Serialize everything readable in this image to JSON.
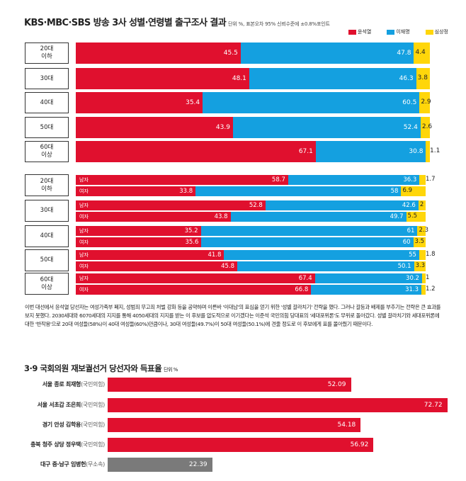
{
  "header": {
    "title": "KBS·MBC·SBS 방송 3사 성별·연령별 출구조사 결과",
    "subtitle": "단위 %, 표본오차 95% 신뢰수준에 ±0.8%포인트"
  },
  "legend": [
    {
      "label": "윤석열",
      "color": "#e0102e"
    },
    {
      "label": "이재명",
      "color": "#14a0e0"
    },
    {
      "label": "심상정",
      "color": "#ffd60a"
    }
  ],
  "colors": {
    "red": "#e0102e",
    "blue": "#14a0e0",
    "yellow": "#ffd60a",
    "gray": "#7a7a7a"
  },
  "age_rows": [
    {
      "age": "20대\n이하",
      "values": [
        "45.5",
        "47.8",
        "4.4"
      ]
    },
    {
      "age": "30대",
      "values": [
        "48.1",
        "46.3",
        "3.8"
      ]
    },
    {
      "age": "40대",
      "values": [
        "35.4",
        "60.5",
        "2.9"
      ]
    },
    {
      "age": "50대",
      "values": [
        "43.9",
        "52.4",
        "2.6"
      ]
    },
    {
      "age": "60대\n이상",
      "values": [
        "67.1",
        "30.8",
        "1.1"
      ]
    }
  ],
  "gender_rows": [
    {
      "age": "20대\n이하",
      "male": {
        "tag": "남자",
        "values": [
          "58.7",
          "36.3",
          "1.7"
        ]
      },
      "female": {
        "tag": "여자",
        "values": [
          "33.8",
          "58",
          "6.9"
        ]
      }
    },
    {
      "age": "30대",
      "male": {
        "tag": "남자",
        "values": [
          "52.8",
          "42.6",
          "2"
        ]
      },
      "female": {
        "tag": "여자",
        "values": [
          "43.8",
          "49.7",
          "5.5"
        ]
      }
    },
    {
      "age": "40대",
      "male": {
        "tag": "남자",
        "values": [
          "35.2",
          "61",
          "2.3"
        ]
      },
      "female": {
        "tag": "여자",
        "values": [
          "35.6",
          "60",
          "3.5"
        ]
      }
    },
    {
      "age": "50대",
      "male": {
        "tag": "남자",
        "values": [
          "41.8",
          "55",
          "1.8"
        ]
      },
      "female": {
        "tag": "여자",
        "values": [
          "45.8",
          "50.1",
          "3.3"
        ]
      }
    },
    {
      "age": "60대\n이상",
      "male": {
        "tag": "남자",
        "values": [
          "67.4",
          "30.2",
          "1"
        ]
      },
      "female": {
        "tag": "여자",
        "values": [
          "66.8",
          "31.3",
          "1.2"
        ]
      }
    }
  ],
  "paragraph": "이번 대선에서 윤석열 당선자는 여성가족부 폐지, 성범죄 무고죄 처벌 강화 등을 공약하며 이른바 '이대남'의 표심을 얻기 위한 '성별 갈라치기' 전략을 폈다. 그러나 갈등과 배제를 부추기는 전략은 큰 효과를 보지 못했다. 2030세대와 6070세대의 지지를 통해 4050세대의 지지를 받는 이 후보를 압도적으로 이기겠다는 이준석 국민의힘 당대표의 '세대포위론'도 무위로 돌아갔다. 성별 갈라치기와 세대포위론에 대한 '반작용'으로 20대 여성들(58%)이 40대 여성들(60%)만큼이나, 30대 여성들(49.7%)이 50대 여성들(50.1%)에 견줄 정도로 이 후보에게 표를 몰아줬기 때문이다.",
  "section2": {
    "title": "3·9 국회의원 재보궐선거 당선자와 득표율",
    "unit": "단위 %"
  },
  "chart_data": [
    {
      "type": "bar",
      "title": "KBS·MBC·SBS 방송 3사 성별·연령별 출구조사 결과",
      "subtitle": "단위 %, 표본오차 95% 신뢰수준에 ±0.8%포인트",
      "stacked": true,
      "orientation": "horizontal",
      "categories": [
        "20대 이하",
        "30대",
        "40대",
        "50대",
        "60대 이상"
      ],
      "series": [
        {
          "name": "윤석열",
          "values": [
            45.5,
            48.1,
            35.4,
            43.9,
            67.1
          ]
        },
        {
          "name": "이재명",
          "values": [
            47.8,
            46.3,
            60.5,
            52.4,
            30.8
          ]
        },
        {
          "name": "심상정",
          "values": [
            4.4,
            3.8,
            2.9,
            2.6,
            1.1
          ]
        }
      ],
      "legend": "top-right"
    },
    {
      "type": "bar",
      "stacked": true,
      "orientation": "horizontal",
      "categories": [
        "20대 이하 남자",
        "20대 이하 여자",
        "30대 남자",
        "30대 여자",
        "40대 남자",
        "40대 여자",
        "50대 남자",
        "50대 여자",
        "60대 이상 남자",
        "60대 이상 여자"
      ],
      "series": [
        {
          "name": "윤석열",
          "values": [
            58.7,
            33.8,
            52.8,
            43.8,
            35.2,
            35.6,
            41.8,
            45.8,
            67.4,
            66.8
          ]
        },
        {
          "name": "이재명",
          "values": [
            36.3,
            58,
            42.6,
            49.7,
            61,
            60,
            55,
            50.1,
            30.2,
            31.3
          ]
        },
        {
          "name": "심상정",
          "values": [
            1.7,
            6.9,
            2,
            5.5,
            2.3,
            3.5,
            1.8,
            3.3,
            1,
            1.2
          ]
        }
      ]
    },
    {
      "type": "bar",
      "orientation": "horizontal",
      "title": "3·9 국회의원 재보궐선거 당선자와 득표율",
      "subtitle": "단위 %",
      "categories": [
        {
          "label": "서울 종로 최재형",
          "party": "(국민의힘)",
          "value": "52.09",
          "color": "#e0102e"
        },
        {
          "label": "서울 서초갑 조은희",
          "party": "(국민의힘)",
          "value": "72.72",
          "color": "#e0102e"
        },
        {
          "label": "경기 안성 김학용",
          "party": "(국민의힘)",
          "value": "54.18",
          "color": "#e0102e"
        },
        {
          "label": "충북 청주 상당 정우택",
          "party": "(국민의힘)",
          "value": "56.92",
          "color": "#e0102e"
        },
        {
          "label": "대구 중·남구 임병헌",
          "party": "(무소속)",
          "value": "22.39",
          "color": "#7a7a7a"
        }
      ],
      "values": [
        52.09,
        72.72,
        54.18,
        56.92,
        22.39
      ]
    }
  ]
}
